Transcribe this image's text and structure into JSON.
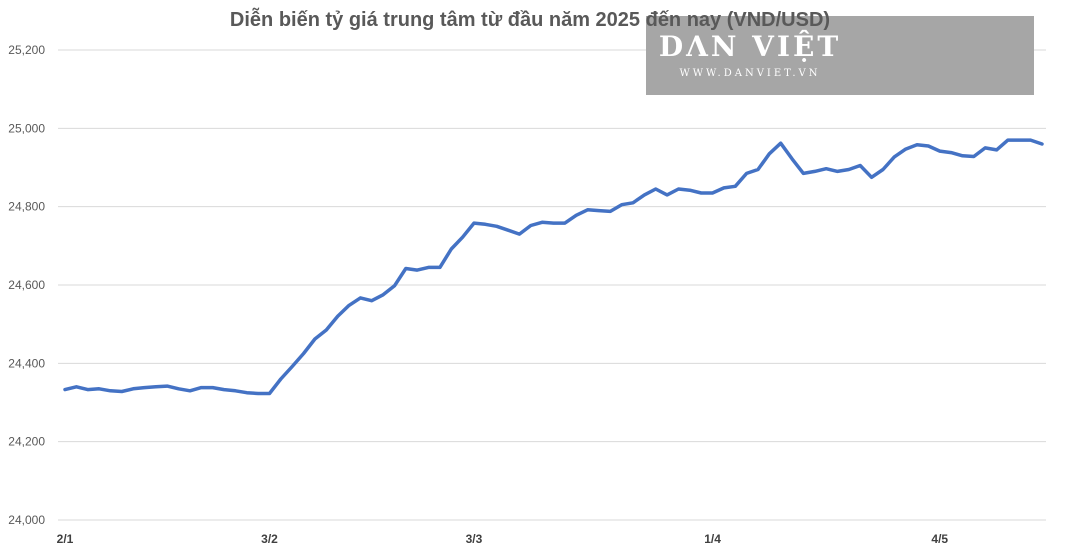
{
  "chart_data": {
    "type": "line",
    "title": "Diễn biến tỷ giá trung tâm từ đầu năm 2025 đến nay (VND/USD)",
    "xlabel": "",
    "ylabel": "",
    "ylim": [
      24000,
      25200
    ],
    "yticks": [
      24000,
      24200,
      24400,
      24600,
      24800,
      25000,
      25200
    ],
    "ytick_labels": [
      "24,000",
      "24,200",
      "24,400",
      "24,600",
      "24,800",
      "25,000",
      "25,200"
    ],
    "xtick_labels": [
      {
        "label": "2/1",
        "index": 0
      },
      {
        "label": "3/2",
        "index": 18
      },
      {
        "label": "3/3",
        "index": 36
      },
      {
        "label": "1/4",
        "index": 57
      },
      {
        "label": "4/5",
        "index": 77
      }
    ],
    "grid": true,
    "line_color": "#4472C4",
    "series": [
      {
        "values": [
          24333,
          24340,
          24333,
          24335,
          24330,
          24328,
          24335,
          24338,
          24340,
          24342,
          24335,
          24330,
          24338,
          24338,
          24333,
          24330,
          24325,
          24323,
          24323,
          24360,
          24392,
          24425,
          24462,
          24485,
          24520,
          24548,
          24567,
          24560,
          24575,
          24598,
          24642,
          24638,
          24645,
          24645,
          24692,
          24722,
          24758,
          24755,
          24750,
          24740,
          24730,
          24752,
          24760,
          24758,
          24758,
          24778,
          24792,
          24790,
          24788,
          24805,
          24810,
          24830,
          24845,
          24830,
          24845,
          24842,
          24835,
          24835,
          24848,
          24852,
          24885,
          24895,
          24935,
          24962,
          24922,
          24885,
          24890,
          24897,
          24890,
          24895,
          24905,
          24875,
          24895,
          24927,
          24947,
          24958,
          24955,
          24942,
          24938,
          24930,
          24928,
          24950,
          24945,
          24970,
          24970,
          24970,
          24960
        ]
      }
    ]
  },
  "watermark": {
    "logo": "DΛN VIỆT",
    "url": "WWW.DANVIET.VN"
  }
}
